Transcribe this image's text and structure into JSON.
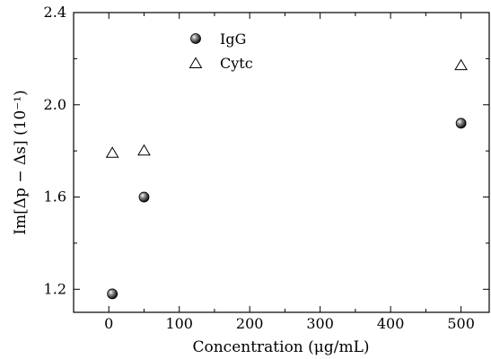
{
  "chart_data": {
    "type": "scatter",
    "title": "",
    "xlabel": "Concentration (μg/mL)",
    "ylabel": "Im[Δp − Δs] (10⁻¹)",
    "xlim": [
      -50,
      540
    ],
    "ylim": [
      1.1,
      2.4
    ],
    "xticks": [
      0,
      100,
      200,
      300,
      400,
      500
    ],
    "xtick_labels": [
      "0",
      "100",
      "200",
      "300",
      "400",
      "500"
    ],
    "yticks": [
      1.2,
      1.6,
      2.0,
      2.4
    ],
    "ytick_labels": [
      "1.2",
      "1.6",
      "2.0",
      "2.4"
    ],
    "grid": false,
    "legend_position": "top-left",
    "series": [
      {
        "name": "IgG",
        "marker": "filled-sphere",
        "color": "#000000",
        "x": [
          5,
          50,
          500
        ],
        "y": [
          1.18,
          1.6,
          1.92
        ]
      },
      {
        "name": "Cytc",
        "marker": "open-triangle",
        "color": "#000000",
        "x": [
          5,
          50,
          500
        ],
        "y": [
          1.79,
          1.8,
          2.17
        ]
      }
    ]
  }
}
